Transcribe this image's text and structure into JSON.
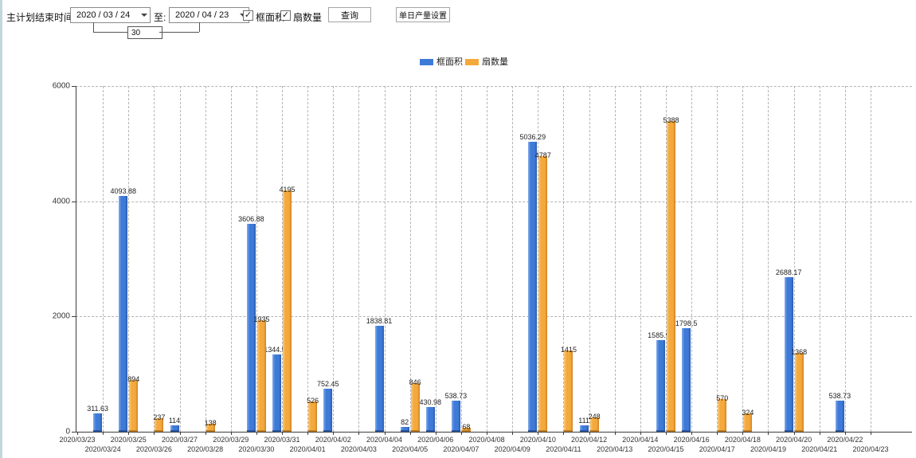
{
  "toolbar": {
    "plan_end_label": "主计划结束时间:",
    "date_from": "2020 / 03 / 24",
    "to_label": "至:",
    "date_to": "2020 / 04 / 23",
    "interval_days": "30",
    "checkbox_frame_area_label": "框面积",
    "checkbox_fan_count_label": "扇数量",
    "checkbox_checked_glyph": "✓",
    "query_button_label": "查询",
    "daily_output_button_label": "单日产量设置"
  },
  "chart_data": {
    "type": "bar",
    "title": "",
    "xlabel": "",
    "ylabel": "",
    "ylim": [
      0,
      6000
    ],
    "yticks": [
      0,
      2000,
      4000,
      6000
    ],
    "grid": true,
    "legend_position": "top",
    "categories": [
      "2020/03/23",
      "2020/03/24",
      "2020/03/25",
      "2020/03/26",
      "2020/03/27",
      "2020/03/28",
      "2020/03/29",
      "2020/03/30",
      "2020/03/31",
      "2020/04/01",
      "2020/04/02",
      "2020/04/03",
      "2020/04/04",
      "2020/04/05",
      "2020/04/06",
      "2020/04/07",
      "2020/04/08",
      "2020/04/09",
      "2020/04/10",
      "2020/04/11",
      "2020/04/12",
      "2020/04/13",
      "2020/04/14",
      "2020/04/15",
      "2020/04/16",
      "2020/04/17",
      "2020/04/18",
      "2020/04/19",
      "2020/04/20",
      "2020/04/21",
      "2020/04/22",
      "2020/04/23"
    ],
    "series": [
      {
        "name": "框面积",
        "key": "frame-area",
        "color": "#3e7bd9",
        "values": [
          null,
          311.63,
          4093.88,
          null,
          114,
          null,
          null,
          3606.88,
          1344.95,
          null,
          752.45,
          null,
          1838.81,
          82,
          430.98,
          538.73,
          null,
          null,
          5036.29,
          null,
          111,
          null,
          null,
          1585.96,
          1798.5,
          null,
          null,
          null,
          2688.17,
          null,
          538.73,
          null
        ]
      },
      {
        "name": "扇数量",
        "key": "fan-count",
        "color": "#f5a93c",
        "values": [
          null,
          null,
          894,
          237,
          null,
          138,
          null,
          1935,
          4195,
          526,
          null,
          null,
          null,
          846,
          null,
          68,
          null,
          null,
          4787,
          1415,
          248,
          null,
          null,
          5388,
          null,
          570,
          324,
          null,
          1368,
          null,
          null,
          null
        ]
      }
    ]
  }
}
